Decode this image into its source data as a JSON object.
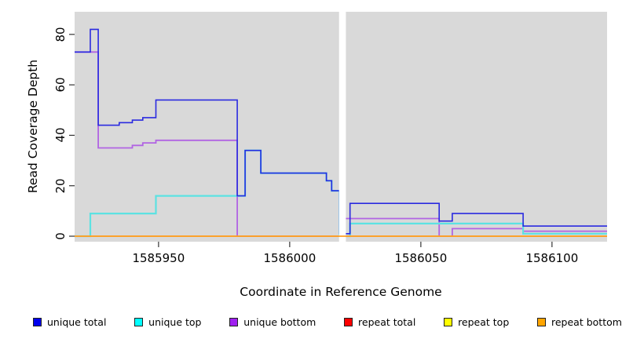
{
  "chart_data": {
    "type": "line",
    "subtype": "step",
    "xlabel": "Coordinate in Reference Genome",
    "ylabel": "Read Coverage Depth",
    "x_ticks": [
      1585950,
      1586000,
      1586050,
      1586100
    ],
    "y_ticks": [
      0,
      20,
      40,
      60,
      80
    ],
    "xlim": [
      1585918,
      1586121
    ],
    "ylim": [
      -2.2,
      88.8
    ],
    "grid": false,
    "plot_background": "#d9d9d9",
    "gap_region": {
      "x_start": 1586018.8,
      "x_end": 1586021.4
    },
    "legend_position": "bottom",
    "series": [
      {
        "name": "unique total",
        "legend_color": "#0000EE",
        "line_color": "#2A2AE0",
        "points": [
          [
            1585918,
            73
          ],
          [
            1585924,
            82
          ],
          [
            1585927,
            44
          ],
          [
            1585935,
            45
          ],
          [
            1585940,
            46
          ],
          [
            1585944,
            47
          ],
          [
            1585949,
            54
          ],
          [
            1585980,
            16
          ],
          [
            1585983,
            34
          ],
          [
            1585989,
            25
          ],
          [
            1586014,
            22
          ],
          [
            1586016,
            18
          ],
          [
            1586019,
            1
          ],
          [
            1586023,
            13
          ],
          [
            1586057,
            6
          ],
          [
            1586062,
            9
          ],
          [
            1586089,
            4
          ]
        ]
      },
      {
        "name": "unique top",
        "legend_color": "#00FFFF",
        "line_color": "#5CE2E2",
        "points": [
          [
            1585918,
            0
          ],
          [
            1585924,
            9
          ],
          [
            1585949,
            16
          ],
          [
            1585983,
            34
          ],
          [
            1585989,
            25
          ],
          [
            1586014,
            22
          ],
          [
            1586016,
            18
          ],
          [
            1586019,
            0
          ],
          [
            1586023,
            5
          ],
          [
            1586089,
            1
          ]
        ]
      },
      {
        "name": "unique bottom",
        "legend_color": "#A020F0",
        "line_color": "#B164E3",
        "points": [
          [
            1585918,
            73
          ],
          [
            1585927,
            35
          ],
          [
            1585940,
            36
          ],
          [
            1585944,
            37
          ],
          [
            1585949,
            38
          ],
          [
            1585980,
            0
          ],
          [
            1586021,
            7
          ],
          [
            1586057,
            0
          ],
          [
            1586062,
            3
          ],
          [
            1586089,
            2
          ]
        ]
      },
      {
        "name": "repeat total",
        "legend_color": "#FF0000",
        "line_color": "#E04545",
        "points": [
          [
            1585918,
            0
          ]
        ]
      },
      {
        "name": "repeat top",
        "legend_color": "#FFFF00",
        "line_color": "#F0F045",
        "points": [
          [
            1585918,
            0
          ]
        ]
      },
      {
        "name": "repeat bottom",
        "legend_color": "#FFA500",
        "line_color": "#FF9E23",
        "points": [
          [
            1585918,
            0
          ]
        ]
      }
    ]
  }
}
